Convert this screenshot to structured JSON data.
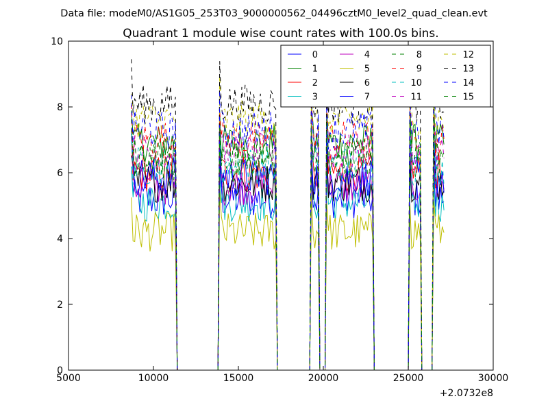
{
  "suptitle": "Data file: modeM0/AS1G05_253T03_9000000562_04496cztM0_level2_quad_clean.evt",
  "chart_data": {
    "type": "line",
    "title": "Quadrant 1 module wise count rates with 100.0s bins.",
    "xlabel": "",
    "ylabel": "",
    "xlim": [
      5000,
      30000
    ],
    "ylim": [
      0,
      10
    ],
    "x_offset_label": "+2.0732e8",
    "x_ticks": [
      5000,
      10000,
      15000,
      20000,
      25000,
      30000
    ],
    "y_ticks": [
      0,
      2,
      4,
      6,
      8,
      10
    ],
    "grid": false,
    "legend_position": "top-right",
    "gti_windows": [
      [
        8700,
        11300
      ],
      [
        13900,
        17200
      ],
      [
        19300,
        19700
      ],
      [
        20200,
        22900
      ],
      [
        25100,
        25700
      ],
      [
        26500,
        27100
      ]
    ],
    "series": [
      {
        "name": "0",
        "mean": 5.2,
        "color": "#0000ff",
        "dashed": false
      },
      {
        "name": "1",
        "mean": 6.9,
        "color": "#008000",
        "dashed": false
      },
      {
        "name": "2",
        "mean": 6.0,
        "color": "#ff0000",
        "dashed": false
      },
      {
        "name": "3",
        "mean": 5.1,
        "color": "#00bfbf",
        "dashed": false
      },
      {
        "name": "4",
        "mean": 5.6,
        "color": "#bf00bf",
        "dashed": false
      },
      {
        "name": "5",
        "mean": 4.2,
        "color": "#bfbf00",
        "dashed": false
      },
      {
        "name": "6",
        "mean": 5.7,
        "color": "#000000",
        "dashed": false
      },
      {
        "name": "7",
        "mean": 5.9,
        "color": "#0000ff",
        "dashed": false
      },
      {
        "name": "8",
        "mean": 6.3,
        "color": "#008000",
        "dashed": true
      },
      {
        "name": "9",
        "mean": 7.0,
        "color": "#ff0000",
        "dashed": true
      },
      {
        "name": "10",
        "mean": 6.2,
        "color": "#00bfbf",
        "dashed": true
      },
      {
        "name": "11",
        "mean": 6.6,
        "color": "#bf00bf",
        "dashed": true
      },
      {
        "name": "12",
        "mean": 7.6,
        "color": "#bfbf00",
        "dashed": true
      },
      {
        "name": "13",
        "mean": 8.1,
        "color": "#000000",
        "dashed": true
      },
      {
        "name": "14",
        "mean": 7.3,
        "color": "#0000ff",
        "dashed": true
      },
      {
        "name": "15",
        "mean": 6.5,
        "color": "#008000",
        "dashed": true
      }
    ]
  }
}
